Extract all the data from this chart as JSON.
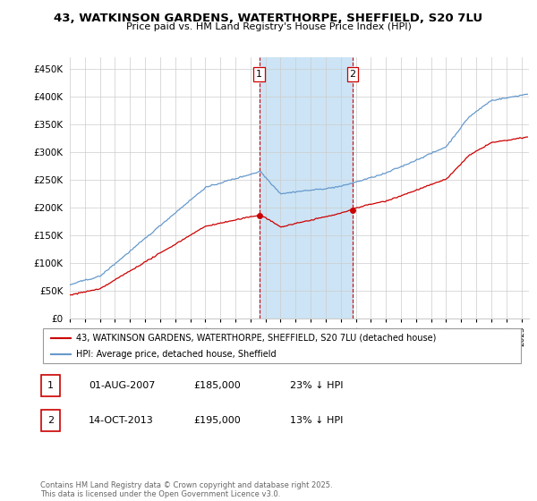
{
  "title": "43, WATKINSON GARDENS, WATERTHORPE, SHEFFIELD, S20 7LU",
  "subtitle": "Price paid vs. HM Land Registry's House Price Index (HPI)",
  "ylabel_ticks": [
    "£0",
    "£50K",
    "£100K",
    "£150K",
    "£200K",
    "£250K",
    "£300K",
    "£350K",
    "£400K",
    "£450K"
  ],
  "ytick_values": [
    0,
    50000,
    100000,
    150000,
    200000,
    250000,
    300000,
    350000,
    400000,
    450000
  ],
  "ylim": [
    0,
    470000
  ],
  "xlim_start": 1995.0,
  "xlim_end": 2025.5,
  "purchase1": {
    "date_num": 2007.583,
    "price": 185000,
    "label": "1"
  },
  "purchase2": {
    "date_num": 2013.79,
    "price": 195000,
    "label": "2"
  },
  "vline1": 2007.583,
  "vline2": 2013.79,
  "legend_line1": "43, WATKINSON GARDENS, WATERTHORPE, SHEFFIELD, S20 7LU (detached house)",
  "legend_line2": "HPI: Average price, detached house, Sheffield",
  "table_rows": [
    {
      "num": "1",
      "date": "01-AUG-2007",
      "price": "£185,000",
      "hpi": "23% ↓ HPI"
    },
    {
      "num": "2",
      "date": "14-OCT-2013",
      "price": "£195,000",
      "hpi": "13% ↓ HPI"
    }
  ],
  "footer": "Contains HM Land Registry data © Crown copyright and database right 2025.\nThis data is licensed under the Open Government Licence v3.0.",
  "line_color_red": "#cc0000",
  "line_color_blue": "#6699cc",
  "shade_color": "#cce4f5",
  "vline_color": "#cc0000",
  "background_color": "#ffffff",
  "grid_color": "#cccccc"
}
